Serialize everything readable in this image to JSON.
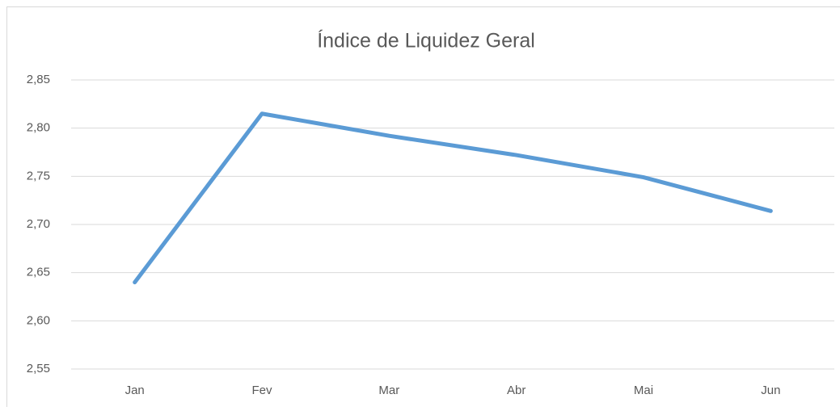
{
  "chart_data": {
    "type": "line",
    "title": "Índice de Liquidez Geral",
    "categories": [
      "Jan",
      "Fev",
      "Mar",
      "Abr",
      "Mai",
      "Jun"
    ],
    "series": [
      {
        "name": "Índice de Liquidez Geral",
        "color": "#5b9bd5",
        "values": [
          2.64,
          2.815,
          2.792,
          2.772,
          2.749,
          2.714
        ]
      }
    ],
    "ylim": [
      2.55,
      2.85
    ],
    "yticks": [
      {
        "value": 2.55,
        "label": "2,55"
      },
      {
        "value": 2.6,
        "label": "2,60"
      },
      {
        "value": 2.65,
        "label": "2,65"
      },
      {
        "value": 2.7,
        "label": "2,70"
      },
      {
        "value": 2.75,
        "label": "2,75"
      },
      {
        "value": 2.8,
        "label": "2,80"
      },
      {
        "value": 2.85,
        "label": "2,85"
      }
    ],
    "grid": true
  }
}
